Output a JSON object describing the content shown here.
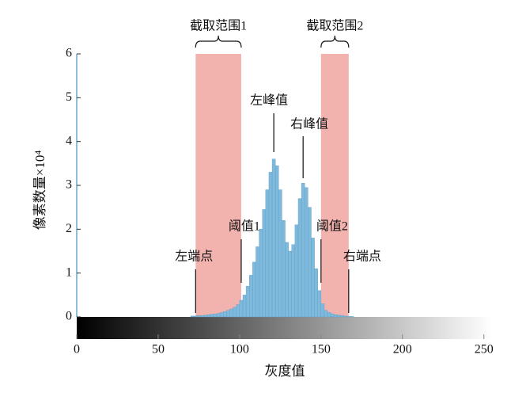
{
  "chart_data": {
    "type": "histogram",
    "x_label": "灰度值",
    "y_label": "像素数量×10⁴",
    "xlim": [
      0,
      255
    ],
    "xticks": [
      0,
      50,
      100,
      150,
      200,
      250
    ],
    "ylim": [
      0,
      6
    ],
    "yticks": [
      0,
      1,
      2,
      3,
      4,
      5,
      6
    ],
    "color": "#7fb9dc",
    "bins": [
      70,
      72,
      74,
      76,
      78,
      80,
      82,
      84,
      86,
      88,
      90,
      92,
      94,
      96,
      98,
      100,
      102,
      104,
      106,
      108,
      110,
      112,
      114,
      116,
      118,
      120,
      122,
      124,
      126,
      128,
      130,
      132,
      134,
      136,
      138,
      140,
      142,
      144,
      146,
      148,
      150,
      152,
      154,
      156,
      158,
      160,
      162,
      164,
      166,
      168,
      170
    ],
    "counts": [
      0.02,
      0.02,
      0.03,
      0.03,
      0.04,
      0.05,
      0.06,
      0.07,
      0.08,
      0.1,
      0.12,
      0.15,
      0.18,
      0.22,
      0.28,
      0.38,
      0.5,
      0.7,
      0.95,
      1.25,
      1.6,
      2.0,
      2.45,
      2.9,
      3.3,
      3.6,
      3.45,
      2.9,
      2.2,
      1.7,
      1.5,
      1.65,
      2.1,
      2.7,
      3.05,
      2.95,
      2.5,
      1.8,
      1.1,
      0.6,
      0.3,
      0.15,
      0.1,
      0.07,
      0.05,
      0.04,
      0.03,
      0.02,
      0.01,
      0.01
    ],
    "regions": [
      {
        "label": "截取范围1",
        "range": [
          73,
          101
        ],
        "color": "#f2b3ae"
      },
      {
        "label": "截取范围2",
        "range": [
          150,
          167
        ],
        "color": "#f2b3ae"
      }
    ],
    "markers": [
      {
        "label": "左端点",
        "x": 73
      },
      {
        "label": "阈值1",
        "x": 101
      },
      {
        "label": "阈值2",
        "x": 150
      },
      {
        "label": "右端点",
        "x": 167
      }
    ],
    "peaks": [
      {
        "label": "左峰值",
        "x": 121
      },
      {
        "label": "右峰值",
        "x": 139
      }
    ]
  }
}
